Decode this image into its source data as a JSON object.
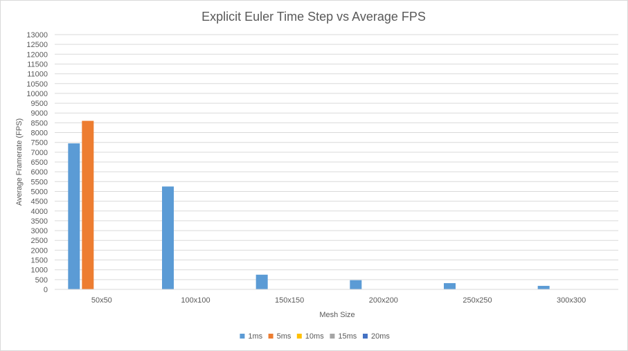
{
  "chart_data": {
    "type": "bar",
    "title": "Explicit Euler Time Step vs Average FPS",
    "xlabel": "Mesh Size",
    "ylabel": "Average Framerate  (FPS)",
    "categories": [
      "50x50",
      "100x100",
      "150x150",
      "200x200",
      "250x250",
      "300x300"
    ],
    "series": [
      {
        "name": "1ms",
        "color": "#5b9bd5",
        "values": [
          7450,
          5250,
          750,
          470,
          320,
          180
        ]
      },
      {
        "name": "5ms",
        "color": "#ed7d31",
        "values": [
          8600,
          0,
          0,
          0,
          0,
          0
        ]
      },
      {
        "name": "10ms",
        "color": "#ffc000",
        "values": [
          0,
          0,
          0,
          0,
          0,
          0
        ]
      },
      {
        "name": "15ms",
        "color": "#a5a5a5",
        "values": [
          0,
          0,
          0,
          0,
          0,
          0
        ]
      },
      {
        "name": "20ms",
        "color": "#4472c4",
        "values": [
          0,
          0,
          0,
          0,
          0,
          0
        ]
      }
    ],
    "ylim": [
      0,
      13000
    ],
    "yticks": [
      0,
      500,
      1000,
      1500,
      2000,
      2500,
      3000,
      3500,
      4000,
      4500,
      5000,
      5500,
      6000,
      6500,
      7000,
      7500,
      8000,
      8500,
      9000,
      9500,
      10000,
      10500,
      11000,
      11500,
      12000,
      12500,
      13000
    ],
    "grid": true,
    "legend_position": "bottom"
  }
}
